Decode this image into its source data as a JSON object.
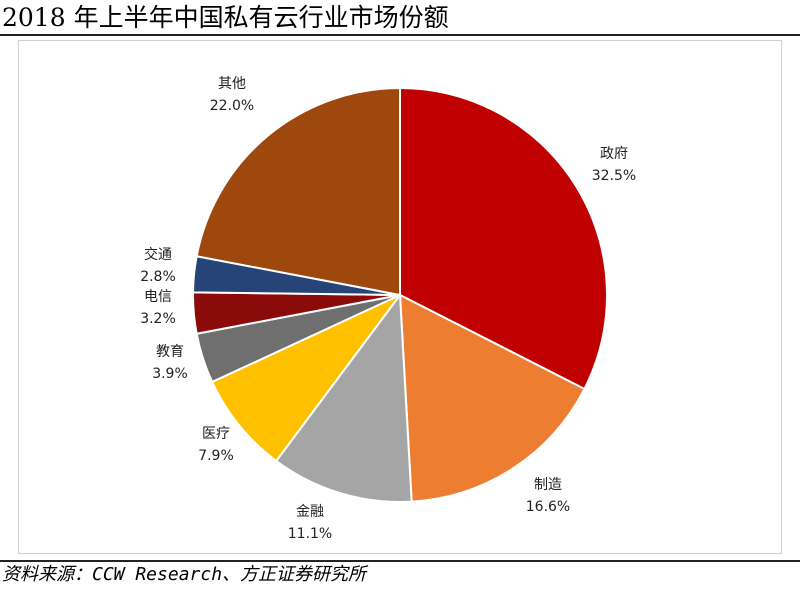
{
  "title": "2018 年上半年中国私有云行业市场份额",
  "source": "资料来源：CCW Research、方正证券研究所",
  "chart_data": {
    "type": "pie",
    "title": "2018 年上半年中国私有云行业市场份额",
    "unit": "%",
    "start_angle_deg": 0,
    "direction": "clockwise",
    "legend": "none",
    "slices": [
      {
        "name": "政府",
        "value": 32.5,
        "label": "32.5%",
        "color": "#C00000"
      },
      {
        "name": "制造",
        "value": 16.6,
        "label": "16.6%",
        "color": "#ED7D31"
      },
      {
        "name": "金融",
        "value": 11.1,
        "label": "11.1%",
        "color": "#A5A5A5"
      },
      {
        "name": "医疗",
        "value": 7.9,
        "label": "7.9%",
        "color": "#FFC000"
      },
      {
        "name": "教育",
        "value": 3.9,
        "label": "3.9%",
        "color": "#6F6F6F"
      },
      {
        "name": "电信",
        "value": 3.2,
        "label": "3.2%",
        "color": "#8B0A0A"
      },
      {
        "name": "交通",
        "value": 2.8,
        "label": "2.8%",
        "color": "#264478"
      },
      {
        "name": "其他",
        "value": 22.0,
        "label": "22.0%",
        "color": "#9E480E"
      }
    ]
  }
}
